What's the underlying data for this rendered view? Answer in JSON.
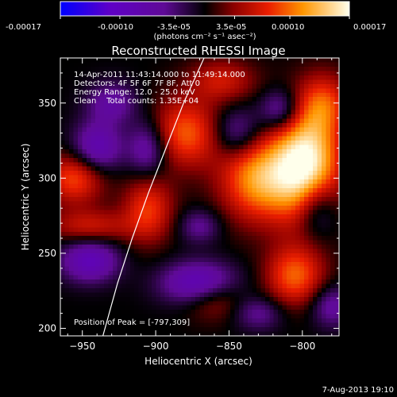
{
  "colorbar": {
    "tick_labels": [
      "-0.00017",
      "-0.00010",
      "-3.5e-05",
      "3.5e-05",
      "0.00010",
      "0.00017"
    ],
    "unit_label": "(photons cm⁻² s⁻¹ asec⁻²)",
    "range": [
      -0.00017,
      0.00017
    ]
  },
  "chart_data": {
    "type": "heatmap",
    "title": "Reconstructed RHESSI Image",
    "xlabel": "Heliocentric X (arcsec)",
    "ylabel": "Heliocentric Y (arcsec)",
    "xlim": [
      -965,
      -775
    ],
    "ylim": [
      195,
      380
    ],
    "x_ticks": [
      -950,
      -900,
      -850,
      -800
    ],
    "y_ticks": [
      200,
      250,
      300,
      350
    ],
    "annotations": [
      "14-Apr-2011 11:43:14.000 to 11:49:14.000",
      "Detectors: 4F 5F 6F 7F 8F, Att 0",
      "Energy Range: 12.0 - 25.0 keV",
      "Clean    Total counts: 1.35E+04"
    ],
    "peak_label": "Position of Peak = [-797,309]",
    "peak": [
      -797,
      309
    ],
    "sources": [
      {
        "x": -797,
        "y": 309,
        "amp": 0.00017,
        "sx": 16,
        "sy": 26
      },
      {
        "x": -830,
        "y": 300,
        "amp": 0.00012,
        "sx": 18,
        "sy": 20
      },
      {
        "x": -880,
        "y": 330,
        "amp": 9.5e-05,
        "sx": 18,
        "sy": 16
      },
      {
        "x": -955,
        "y": 300,
        "amp": 9e-05,
        "sx": 14,
        "sy": 12
      },
      {
        "x": -945,
        "y": 268,
        "amp": 6e-05,
        "sx": 20,
        "sy": 8
      },
      {
        "x": -905,
        "y": 280,
        "amp": 8e-05,
        "sx": 12,
        "sy": 16
      },
      {
        "x": -805,
        "y": 235,
        "amp": 9.5e-05,
        "sx": 14,
        "sy": 14
      },
      {
        "x": -785,
        "y": 350,
        "amp": 7e-05,
        "sx": 12,
        "sy": 14
      },
      {
        "x": -860,
        "y": 220,
        "amp": 5.5e-05,
        "sx": 14,
        "sy": 10
      },
      {
        "x": -855,
        "y": 365,
        "amp": 6e-05,
        "sx": 16,
        "sy": 10
      },
      {
        "x": -940,
        "y": 320,
        "amp": -8.5e-05,
        "sx": 12,
        "sy": 12
      },
      {
        "x": -945,
        "y": 245,
        "amp": -9e-05,
        "sx": 14,
        "sy": 10
      },
      {
        "x": -870,
        "y": 230,
        "amp": -0.0001,
        "sx": 18,
        "sy": 10
      },
      {
        "x": -905,
        "y": 320,
        "amp": -8e-05,
        "sx": 10,
        "sy": 14
      },
      {
        "x": -845,
        "y": 330,
        "amp": -7e-05,
        "sx": 12,
        "sy": 12
      },
      {
        "x": -815,
        "y": 345,
        "amp": -7.5e-05,
        "sx": 10,
        "sy": 10
      },
      {
        "x": -790,
        "y": 280,
        "amp": -7.5e-05,
        "sx": 10,
        "sy": 14
      },
      {
        "x": -870,
        "y": 268,
        "amp": -5e-05,
        "sx": 10,
        "sy": 8
      },
      {
        "x": -930,
        "y": 350,
        "amp": -6e-05,
        "sx": 12,
        "sy": 10
      },
      {
        "x": -780,
        "y": 215,
        "amp": -6e-05,
        "sx": 10,
        "sy": 10
      },
      {
        "x": -830,
        "y": 210,
        "amp": -5e-05,
        "sx": 12,
        "sy": 8
      }
    ],
    "limb_curve": [
      [
        -936,
        195
      ],
      [
        -926,
        230
      ],
      [
        -916,
        260
      ],
      [
        -905,
        290
      ],
      [
        -893,
        320
      ],
      [
        -881,
        350
      ],
      [
        -867,
        380
      ]
    ]
  },
  "timestamp": "7-Aug-2013 19:10"
}
